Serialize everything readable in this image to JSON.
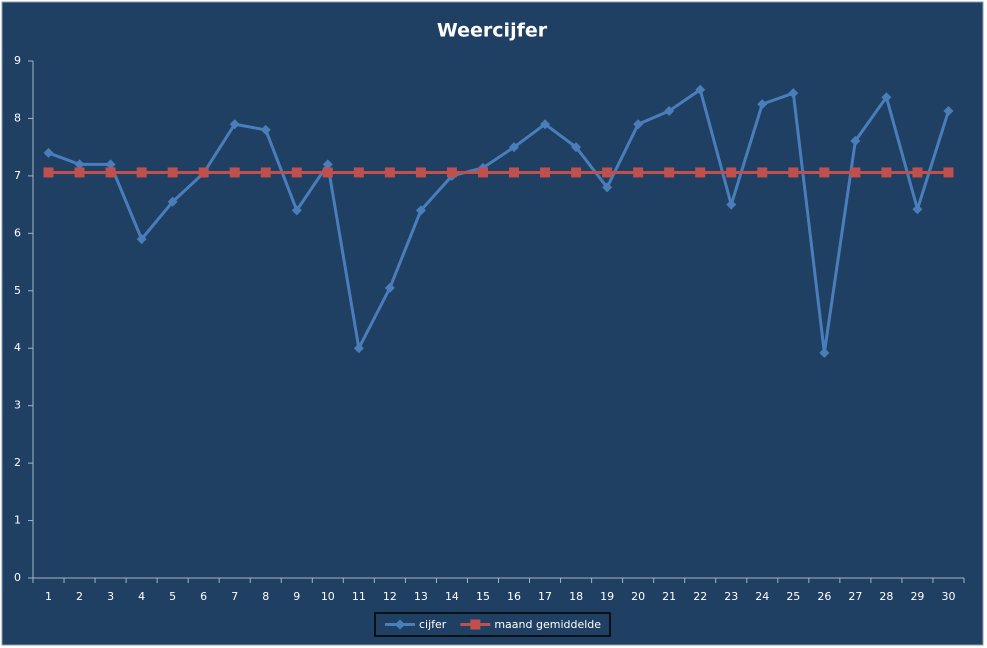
{
  "chart_data": {
    "type": "line",
    "title": "Weercijfer",
    "categories": [
      "1",
      "2",
      "3",
      "4",
      "5",
      "6",
      "7",
      "8",
      "9",
      "10",
      "11",
      "12",
      "13",
      "14",
      "15",
      "16",
      "17",
      "18",
      "19",
      "20",
      "21",
      "22",
      "23",
      "24",
      "25",
      "26",
      "27",
      "28",
      "29",
      "30"
    ],
    "series": [
      {
        "name": "cijfer",
        "color": "#4a7ebb",
        "marker": "diamond",
        "values": [
          7.4,
          7.2,
          7.2,
          5.9,
          6.55,
          7.05,
          7.9,
          7.8,
          6.4,
          7.2,
          4.0,
          5.05,
          6.4,
          7.0,
          7.14,
          7.5,
          7.9,
          7.5,
          6.8,
          7.9,
          8.13,
          8.5,
          6.5,
          8.25,
          8.44,
          3.92,
          7.61,
          8.37,
          6.42,
          8.13
        ]
      },
      {
        "name": "maand gemiddelde",
        "color": "#c0504d",
        "marker": "square",
        "values": [
          7.06,
          7.06,
          7.06,
          7.06,
          7.06,
          7.06,
          7.06,
          7.06,
          7.06,
          7.06,
          7.06,
          7.06,
          7.06,
          7.06,
          7.06,
          7.06,
          7.06,
          7.06,
          7.06,
          7.06,
          7.06,
          7.06,
          7.06,
          7.06,
          7.06,
          7.06,
          7.06,
          7.06,
          7.06,
          7.06
        ]
      }
    ],
    "ylim": [
      0,
      9
    ],
    "yticks": [
      0,
      1,
      2,
      3,
      4,
      5,
      6,
      7,
      8,
      9
    ],
    "legend": "bottom"
  }
}
